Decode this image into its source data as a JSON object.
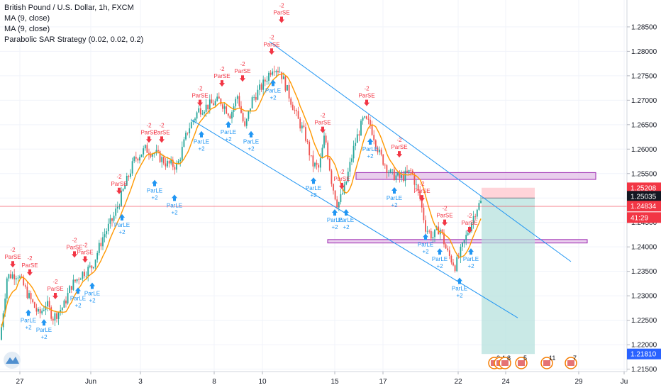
{
  "chart_data": {
    "type": "candlestick",
    "title": "British Pound / U.S. Dollar, 1h, FXCM",
    "indicators": [
      "MA (9, close)",
      "MA (9, close)",
      "Parabolic SAR Strategy (0.02, 0.02, 0.2)"
    ],
    "ylim": [
      1.2145,
      1.2905
    ],
    "y_ticks": [
      "1.28500",
      "1.28000",
      "1.27500",
      "1.27000",
      "1.26500",
      "1.26000",
      "1.25500",
      "1.25000",
      "1.24500",
      "1.24000",
      "1.23500",
      "1.23000",
      "1.22500",
      "1.22000",
      "1.21500"
    ],
    "x_ticks": [
      "27",
      "Jun",
      "3",
      "8",
      "10",
      "15",
      "17",
      "22",
      "24",
      "29",
      "Ju"
    ],
    "price_path": [
      [
        0,
        1.221
      ],
      [
        10,
        1.234
      ],
      [
        25,
        1.2345
      ],
      [
        40,
        1.23
      ],
      [
        55,
        1.226
      ],
      [
        65,
        1.2285
      ],
      [
        75,
        1.2255
      ],
      [
        90,
        1.228
      ],
      [
        100,
        1.232
      ],
      [
        115,
        1.2345
      ],
      [
        130,
        1.236
      ],
      [
        145,
        1.242
      ],
      [
        160,
        1.246
      ],
      [
        175,
        1.252
      ],
      [
        190,
        1.258
      ],
      [
        205,
        1.26
      ],
      [
        220,
        1.259
      ],
      [
        235,
        1.257
      ],
      [
        250,
        1.2565
      ],
      [
        265,
        1.264
      ],
      [
        280,
        1.268
      ],
      [
        295,
        1.269
      ],
      [
        310,
        1.27
      ],
      [
        325,
        1.267
      ],
      [
        335,
        1.271
      ],
      [
        345,
        1.264
      ],
      [
        355,
        1.27
      ],
      [
        370,
        1.273
      ],
      [
        385,
        1.277
      ],
      [
        395,
        1.276
      ],
      [
        410,
        1.27
      ],
      [
        420,
        1.266
      ],
      [
        430,
        1.263
      ],
      [
        440,
        1.257
      ],
      [
        450,
        1.256
      ],
      [
        458,
        1.263
      ],
      [
        468,
        1.253
      ],
      [
        476,
        1.2485
      ],
      [
        486,
        1.252
      ],
      [
        500,
        1.261
      ],
      [
        512,
        1.266
      ],
      [
        522,
        1.265
      ],
      [
        535,
        1.259
      ],
      [
        550,
        1.255
      ],
      [
        565,
        1.254
      ],
      [
        580,
        1.2555
      ],
      [
        592,
        1.25
      ],
      [
        600,
        1.244
      ],
      [
        610,
        1.242
      ],
      [
        620,
        1.244
      ],
      [
        630,
        1.239
      ],
      [
        642,
        1.236
      ],
      [
        652,
        1.24
      ],
      [
        662,
        1.244
      ],
      [
        672,
        1.248
      ],
      [
        680,
        1.2495
      ]
    ],
    "signals": [
      {
        "type": "ParSE",
        "value": "-2",
        "x": 18,
        "price": 1.2355
      },
      {
        "type": "ParSE",
        "value": "-2",
        "x": 42,
        "price": 1.2338
      },
      {
        "type": "ParSE",
        "value": "-2",
        "x": 78,
        "price": 1.229
      },
      {
        "type": "ParSE",
        "value": "-2",
        "x": 105,
        "price": 1.2375
      },
      {
        "type": "ParSE",
        "value": "-2",
        "x": 120,
        "price": 1.2365
      },
      {
        "type": "ParSE",
        "value": "-2",
        "x": 168,
        "price": 1.2505
      },
      {
        "type": "ParSE",
        "value": "-2",
        "x": 210,
        "price": 1.261
      },
      {
        "type": "ParSE",
        "value": "-2",
        "x": 228,
        "price": 1.261
      },
      {
        "type": "ParSE",
        "value": "-2",
        "x": 282,
        "price": 1.2685
      },
      {
        "type": "ParSE",
        "value": "-2",
        "x": 313,
        "price": 1.2725
      },
      {
        "type": "ParSE",
        "value": "-2",
        "x": 342,
        "price": 1.2735
      },
      {
        "type": "ParSE",
        "value": "-2",
        "x": 383,
        "price": 1.279
      },
      {
        "type": "ParSE",
        "value": "-2",
        "x": 397,
        "price": 1.2855
      },
      {
        "type": "ParSE",
        "value": "-2",
        "x": 455,
        "price": 1.263
      },
      {
        "type": "ParSE",
        "value": "-2",
        "x": 482,
        "price": 1.2515
      },
      {
        "type": "ParSE",
        "value": "-2",
        "x": 517,
        "price": 1.2685
      },
      {
        "type": "ParSE",
        "value": "-2",
        "x": 563,
        "price": 1.258
      },
      {
        "type": "ParSE",
        "value": "-2",
        "x": 595,
        "price": 1.249
      },
      {
        "type": "ParSE",
        "value": "-2",
        "x": 627,
        "price": 1.244
      },
      {
        "type": "ParSE",
        "value": "-2",
        "x": 662,
        "price": 1.2425
      },
      {
        "type": "ParLE",
        "value": "+2",
        "x": 40,
        "price": 1.2275
      },
      {
        "type": "ParLE",
        "value": "+2",
        "x": 62,
        "price": 1.2255
      },
      {
        "type": "ParLE",
        "value": "+2",
        "x": 110,
        "price": 1.232
      },
      {
        "type": "ParLE",
        "value": "+2",
        "x": 130,
        "price": 1.233
      },
      {
        "type": "ParLE",
        "value": "+2",
        "x": 172,
        "price": 1.247
      },
      {
        "type": "ParLE",
        "value": "+2",
        "x": 218,
        "price": 1.254
      },
      {
        "type": "ParLE",
        "value": "+2",
        "x": 246,
        "price": 1.251
      },
      {
        "type": "ParLE",
        "value": "+2",
        "x": 284,
        "price": 1.264
      },
      {
        "type": "ParLE",
        "value": "+2",
        "x": 322,
        "price": 1.266
      },
      {
        "type": "ParLE",
        "value": "+2",
        "x": 354,
        "price": 1.264
      },
      {
        "type": "ParLE",
        "value": "+2",
        "x": 385,
        "price": 1.2745
      },
      {
        "type": "ParLE",
        "value": "+2",
        "x": 442,
        "price": 1.2545
      },
      {
        "type": "ParLE",
        "value": "+2",
        "x": 472,
        "price": 1.248
      },
      {
        "type": "ParLE",
        "value": "+2",
        "x": 488,
        "price": 1.248
      },
      {
        "type": "ParLE",
        "value": "+2",
        "x": 522,
        "price": 1.2625
      },
      {
        "type": "ParLE",
        "value": "+2",
        "x": 556,
        "price": 1.2525
      },
      {
        "type": "ParLE",
        "value": "+2",
        "x": 600,
        "price": 1.243
      },
      {
        "type": "ParLE",
        "value": "+2",
        "x": 620,
        "price": 1.24
      },
      {
        "type": "ParLE",
        "value": "+2",
        "x": 648,
        "price": 1.234
      },
      {
        "type": "ParLE",
        "value": "+2",
        "x": 664,
        "price": 1.24
      }
    ],
    "trend_lines": [
      {
        "x1": 380,
        "p1": 1.282,
        "x2": 805,
        "p2": 1.237
      },
      {
        "x1": 270,
        "p1": 1.266,
        "x2": 730,
        "p2": 1.2255
      }
    ],
    "zones": [
      {
        "x1": 502,
        "x2": 840,
        "top": 1.2552,
        "bottom": 1.2538
      },
      {
        "x1": 462,
        "x2": 828,
        "top": 1.2415,
        "bottom": 1.2408
      }
    ],
    "position": {
      "x1": 679,
      "x2": 754,
      "entry": 1.25,
      "target": 1.2181,
      "stop": 1.2521
    },
    "price_lines": [
      {
        "price": 1.2483,
        "color": "#f23645"
      }
    ],
    "price_labels": [
      {
        "text": "1.25208",
        "price": 1.25208,
        "color": "#f23645"
      },
      {
        "text": "1.25035",
        "price": 1.25035,
        "color": "#131722"
      },
      {
        "text": "1.24834",
        "price": 1.24834,
        "color": "#f23645"
      },
      {
        "text": "41:29",
        "price": 1.246,
        "color": "#f23645"
      },
      {
        "text": "1.21810",
        "price": 1.2181,
        "color": "#2962ff"
      }
    ],
    "events": [
      {
        "x": 697,
        "label": "3"
      },
      {
        "x": 705,
        "label": "1"
      },
      {
        "x": 712,
        "label": "8"
      },
      {
        "x": 735,
        "label": "5"
      },
      {
        "x": 771,
        "label": "11"
      },
      {
        "x": 805,
        "label": "7"
      }
    ],
    "colors": {
      "up": "#26a69a",
      "down": "#ef5350",
      "ma": "#ff9800",
      "buy": "#2196f3",
      "sell": "#f23645",
      "trend": "#2196f3",
      "zone": "#e1bee7",
      "zone_border": "#9c27b0",
      "target": "#b2dfdb",
      "stop": "#ffcdd2"
    }
  }
}
